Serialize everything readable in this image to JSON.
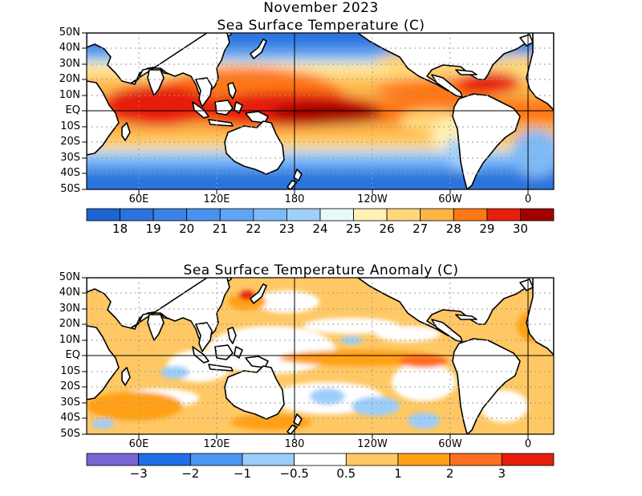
{
  "sst": {
    "title_line1": "November 2023",
    "title_line2": "Sea Surface Temperature (C)",
    "lat_labels": [
      "50N",
      "40N",
      "30N",
      "20N",
      "10N",
      "EQ",
      "10S",
      "20S",
      "30S",
      "40S",
      "50S"
    ],
    "lon_labels": [
      "60E",
      "120E",
      "180",
      "120W",
      "60W",
      "0"
    ],
    "colorbar": {
      "labels": [
        "18",
        "19",
        "20",
        "21",
        "22",
        "23",
        "24",
        "25",
        "26",
        "27",
        "28",
        "29",
        "30"
      ],
      "colors": [
        "#1c64d2",
        "#2a73dc",
        "#3c82e6",
        "#4b92f0",
        "#5fa5f5",
        "#7dbaf7",
        "#a0d0fa",
        "#e6fafa",
        "#fff0b4",
        "#ffd778",
        "#ffb446",
        "#ff7814",
        "#e61e0a",
        "#a00000"
      ]
    }
  },
  "anomaly": {
    "title": "Sea Surface Temperature Anomaly (C)",
    "lat_labels": [
      "50N",
      "40N",
      "30N",
      "20N",
      "10N",
      "EQ",
      "10S",
      "20S",
      "30S",
      "40S",
      "50S"
    ],
    "lon_labels": [
      "60E",
      "120E",
      "180",
      "120W",
      "60W",
      "0"
    ],
    "colorbar": {
      "labels": [
        "−3",
        "−2",
        "−1",
        "−0.5",
        "0.5",
        "1",
        "2",
        "3"
      ],
      "colors": [
        "#7864d2",
        "#1e6ee6",
        "#4b96f0",
        "#9bcdfa",
        "#ffffff",
        "#ffc864",
        "#ffa014",
        "#ff6e1e",
        "#e61e0a"
      ]
    }
  },
  "map_colors": {
    "land": "#ffffff",
    "coast": "#000000",
    "grid": "#9a9a9a"
  }
}
